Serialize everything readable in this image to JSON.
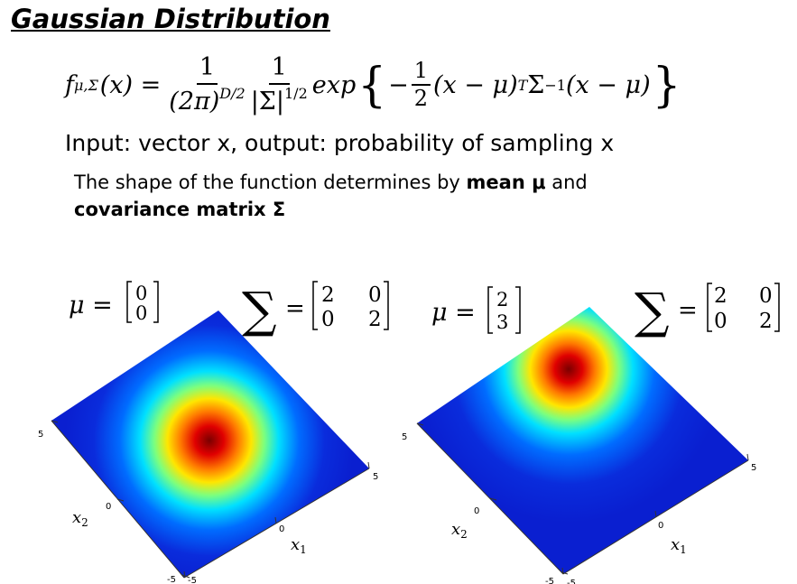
{
  "title": "Gaussian Distribution",
  "formula": {
    "lhs_func": "f",
    "lhs_sub": "μ,Σ",
    "lhs_arg": "(x) =",
    "frac1_num": "1",
    "frac1_den_base": "(2π)",
    "frac1_den_exp": "D/2",
    "frac2_num": "1",
    "frac2_den_base": "|Σ|",
    "frac2_den_exp": "1/2",
    "exp_word": "exp",
    "minus": "−",
    "frac3_num": "1",
    "frac3_den": "2",
    "quad_a": "(x − μ)",
    "quad_sup": "T",
    "quad_b": "Σ",
    "quad_inv": "−1",
    "quad_c": "(x − μ)"
  },
  "line1": "Input: vector x, output: probability of sampling x",
  "line2": {
    "part1": "The shape of the function determines by ",
    "bold1": "mean μ",
    "part2": " and",
    "bold2": "covariance matrix Σ"
  },
  "plots": [
    {
      "mu_label": "μ =",
      "mu": [
        "0",
        "0"
      ],
      "sigma_symbol": "∑",
      "sigma_eq": "=",
      "sigma": [
        [
          "2",
          "0"
        ],
        [
          "0",
          "2"
        ]
      ],
      "x2_ticks": [
        "5",
        "0",
        "-5"
      ],
      "x1_ticks": [
        "-5",
        "0",
        "5"
      ],
      "x1_label": "x",
      "x1_sub": "1",
      "x2_label": "x",
      "x2_sub": "2"
    },
    {
      "mu_label": "μ =",
      "mu": [
        "2",
        "3"
      ],
      "sigma_symbol": "∑",
      "sigma_eq": "=",
      "sigma": [
        [
          "2",
          "0"
        ],
        [
          "0",
          "2"
        ]
      ],
      "x2_ticks": [
        "5",
        "0",
        "-5"
      ],
      "x1_ticks": [
        "-5",
        "0",
        "5"
      ],
      "x1_label": "x",
      "x1_sub": "1",
      "x2_label": "x",
      "x2_sub": "2"
    }
  ],
  "colors": {
    "surface_low": "#0a1fd0",
    "surface_cyan": "#00e0ff",
    "surface_yellow": "#ffe600",
    "surface_red": "#e00000",
    "surface_peak": "#8a0000"
  }
}
